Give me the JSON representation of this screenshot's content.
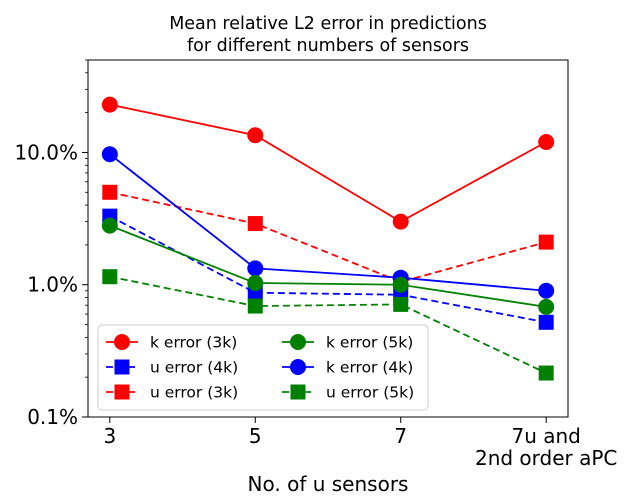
{
  "chart_data": {
    "type": "line",
    "title_lines": [
      "Mean relative L2 error in predictions",
      "for different numbers of sensors"
    ],
    "xlabel": "No. of u sensors",
    "ylabel": "",
    "yscale": "log",
    "ylim": [
      0.1,
      50
    ],
    "categories": [
      [
        "3"
      ],
      [
        "5"
      ],
      [
        "7"
      ],
      [
        "7u and",
        "2nd order aPC"
      ]
    ],
    "y_ticks": [
      {
        "value": 0.1,
        "label": "0.1%"
      },
      {
        "value": 1,
        "label": "1.0%"
      },
      {
        "value": 10,
        "label": "10.0%"
      }
    ],
    "grid": false,
    "legend_placement": "lower-left",
    "series": [
      {
        "name": "k error (3k)",
        "color": "#ff0000",
        "linestyle": "solid",
        "marker": "circle",
        "values": [
          23.0,
          13.5,
          3.0,
          12.0
        ]
      },
      {
        "name": "u error (3k)",
        "color": "#ff0000",
        "linestyle": "dashed",
        "marker": "square",
        "values": [
          5.0,
          2.9,
          1.05,
          2.1
        ]
      },
      {
        "name": "k error (4k)",
        "color": "#0000ff",
        "linestyle": "solid",
        "marker": "circle",
        "values": [
          9.7,
          1.33,
          1.13,
          0.9
        ]
      },
      {
        "name": "u error (4k)",
        "color": "#0000ff",
        "linestyle": "dashed",
        "marker": "square",
        "values": [
          3.3,
          0.87,
          0.84,
          0.52
        ]
      },
      {
        "name": "k error (5k)",
        "color": "#008000",
        "linestyle": "solid",
        "marker": "circle",
        "values": [
          2.8,
          1.03,
          1.0,
          0.68
        ]
      },
      {
        "name": "u error (5k)",
        "color": "#008000",
        "linestyle": "dashed",
        "marker": "square",
        "values": [
          1.15,
          0.69,
          0.71,
          0.215
        ]
      }
    ],
    "legend_order": [
      0,
      3,
      1,
      4,
      2,
      5
    ]
  }
}
